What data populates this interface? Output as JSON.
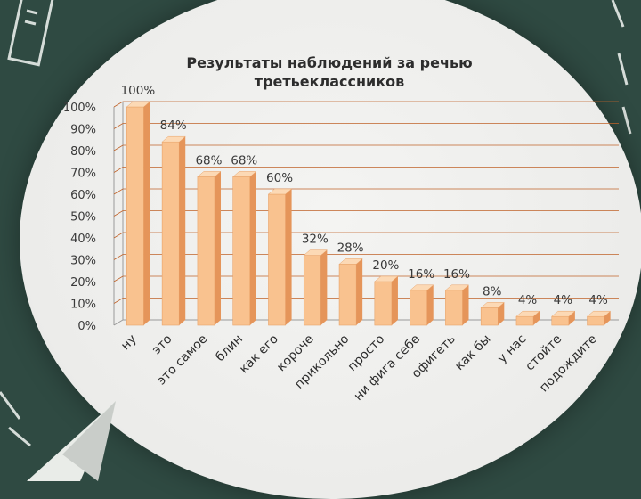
{
  "chart_data": {
    "type": "bar",
    "title": "Результаты наблюдений за речью третьеклассников",
    "categories": [
      "ну",
      "это",
      "это самое",
      "блин",
      "как его",
      "короче",
      "прикольно",
      "просто",
      "ни фига себе",
      "офигеть",
      "как бы",
      "у нас",
      "стойте",
      "подождите"
    ],
    "values": [
      100,
      84,
      68,
      68,
      60,
      32,
      28,
      20,
      16,
      16,
      8,
      4,
      4,
      4
    ],
    "data_labels": [
      "100%",
      "84%",
      "68%",
      "68%",
      "60%",
      "32%",
      "28%",
      "20%",
      "16%",
      "16%",
      "8%",
      "4%",
      "4%",
      "4%"
    ],
    "y_ticks": [
      "0%",
      "10%",
      "20%",
      "30%",
      "40%",
      "50%",
      "60%",
      "70%",
      "80%",
      "90%",
      "100%"
    ],
    "ylim": [
      0,
      100
    ],
    "xlabel": "",
    "ylabel": "",
    "grid": true,
    "legend": "none",
    "colors": {
      "bar_front": "#f9c28f",
      "bar_side": "#e5955a",
      "bar_top": "#fcd9b5",
      "gridline": "#c0632a",
      "background": "#2f4a42"
    }
  }
}
